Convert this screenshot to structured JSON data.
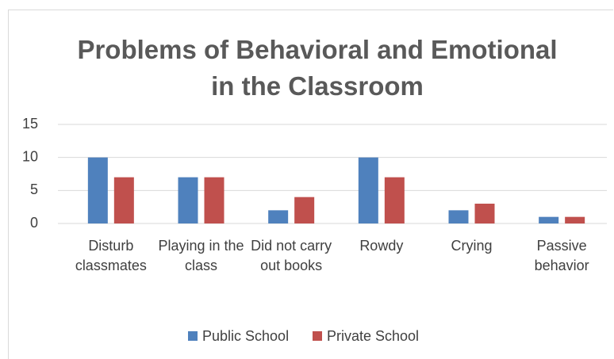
{
  "chart_data": {
    "type": "bar",
    "title": "Problems of Behavioral and Emotional in the Classroom",
    "categories": [
      "Disturb classmates",
      "Playing in the class",
      "Did not carry out books",
      "Rowdy",
      "Crying",
      "Passive behavior"
    ],
    "series": [
      {
        "name": "Public School",
        "color": "#4f81bd",
        "values": [
          10,
          7,
          2,
          10,
          2,
          1
        ]
      },
      {
        "name": "Private School",
        "color": "#c0504d",
        "values": [
          7,
          7,
          4,
          7,
          3,
          1
        ]
      }
    ],
    "ylim": [
      0,
      15
    ],
    "yticks": [
      0,
      5,
      10,
      15
    ],
    "grid": true,
    "legend": "bottom"
  }
}
